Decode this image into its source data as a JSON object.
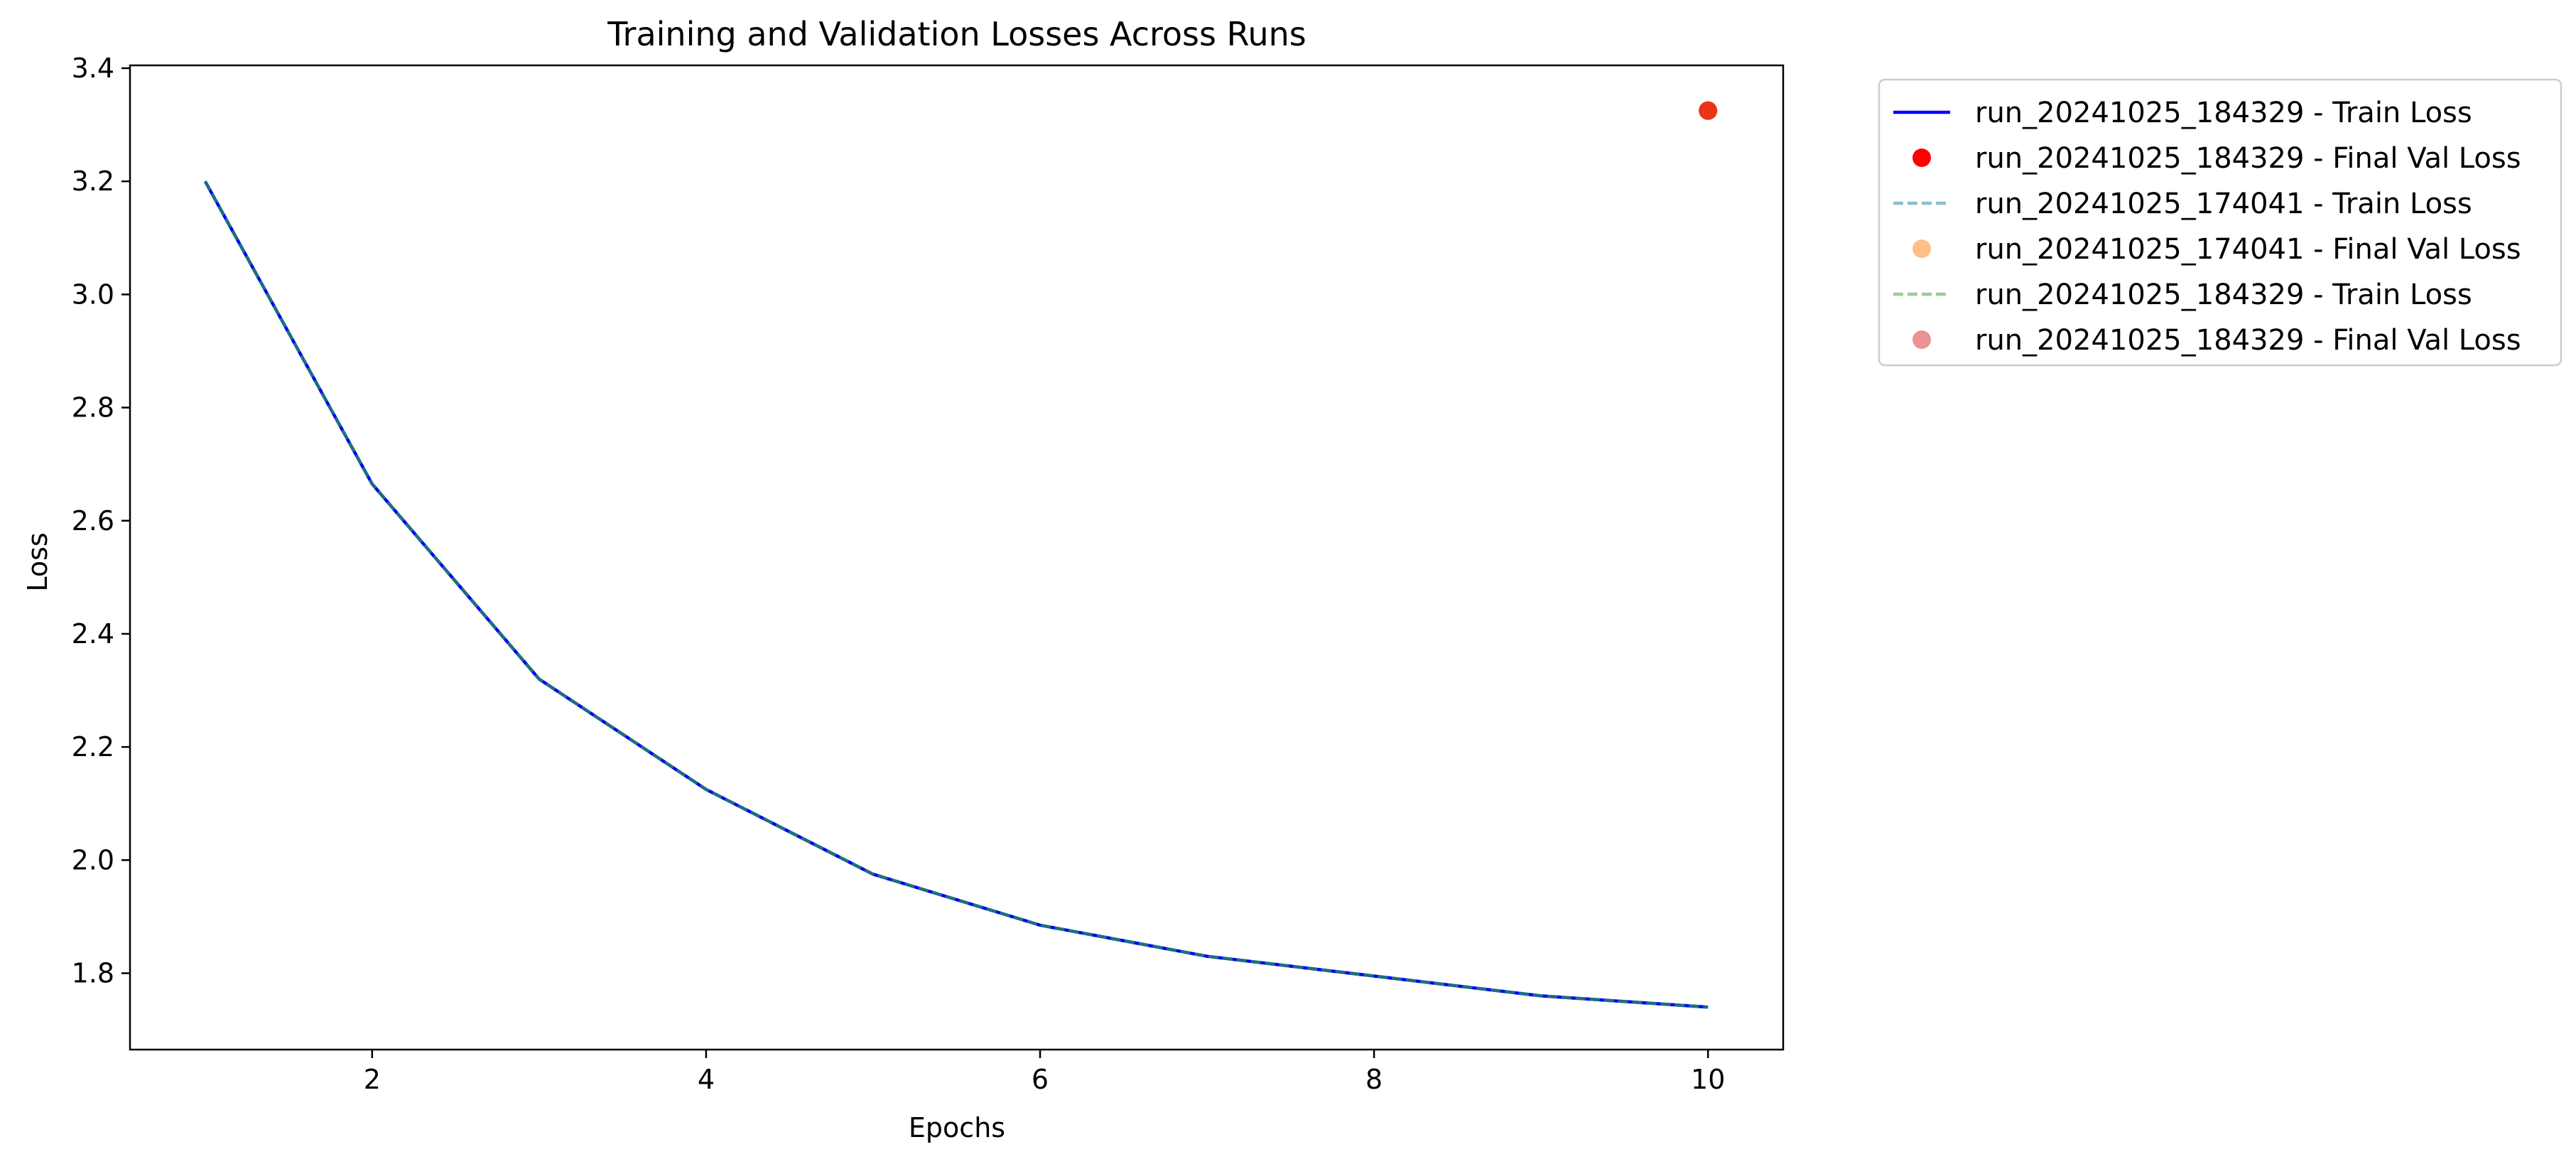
{
  "chart_data": {
    "type": "line",
    "title": "Training and Validation Losses Across Runs",
    "xlabel": "Epochs",
    "ylabel": "Loss",
    "xlim": [
      0.55,
      10.45
    ],
    "ylim": [
      1.665,
      3.405
    ],
    "xticks": [
      2,
      4,
      6,
      8,
      10
    ],
    "yticks": [
      1.8,
      2.0,
      2.2,
      2.4,
      2.6,
      2.8,
      3.0,
      3.2,
      3.4
    ],
    "xtick_labels": [
      "2",
      "4",
      "6",
      "8",
      "10"
    ],
    "ytick_labels": [
      "1.8",
      "2.0",
      "2.2",
      "2.4",
      "2.6",
      "2.8",
      "3.0",
      "3.2",
      "3.4"
    ],
    "grid": false,
    "legend_position": "outside upper right",
    "x": [
      1,
      2,
      3,
      4,
      5,
      6,
      7,
      8,
      9,
      10
    ],
    "series": [
      {
        "name": "run_20241025_184329 - Train Loss",
        "kind": "line",
        "style": "solid",
        "color": "#0000ff",
        "opacity": 1,
        "values": [
          3.2,
          2.665,
          2.32,
          2.125,
          1.975,
          1.885,
          1.83,
          1.795,
          1.76,
          1.74
        ]
      },
      {
        "name": "run_20241025_184329 - Final Val Loss",
        "kind": "point",
        "color": "#ff0000",
        "opacity": 1,
        "x": 10,
        "value": 3.325
      },
      {
        "name": "run_20241025_174041 - Train Loss",
        "kind": "line",
        "style": "dashed",
        "color": "#1f77b4",
        "opacity": 0.5,
        "values": [
          3.2,
          2.665,
          2.32,
          2.125,
          1.975,
          1.885,
          1.83,
          1.795,
          1.76,
          1.74
        ]
      },
      {
        "name": "run_20241025_174041 - Final Val Loss",
        "kind": "point",
        "color": "#ff7f0e",
        "opacity": 0.5,
        "x": 10,
        "value": 3.325
      },
      {
        "name": "run_20241025_184329 - Train Loss",
        "kind": "line",
        "style": "dashed",
        "color": "#2ca02c",
        "opacity": 0.5,
        "values": [
          3.2,
          2.665,
          2.32,
          2.125,
          1.975,
          1.885,
          1.83,
          1.795,
          1.76,
          1.74
        ]
      },
      {
        "name": "run_20241025_184329 - Final Val Loss",
        "kind": "point",
        "color": "#d62728",
        "opacity": 0.5,
        "x": 10,
        "value": 3.325
      }
    ]
  }
}
